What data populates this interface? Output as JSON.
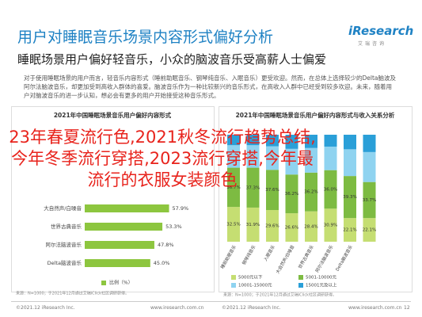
{
  "header": {
    "title": "用户对睡眠音乐场景内容形式偏好分析",
    "logo": "iResearch",
    "logo_sub": "艾瑞咨询",
    "subtitle": "睡眠场景用户偏好轻音乐，小众的脑波音乐受高薪人士偏爱",
    "body": "对于使用睡眠场景的用户而言，轻音乐内容形式（睡前助眠音乐、钢琴纯音乐、入眠音乐）更受欢迎。然而，在总体上选择较少的Delta脑波及阿尔法脑波音乐，却更加受到高收入群体的喜爱。脑波音乐作为一种比较新兴的音乐形式，在高收入人群中已经受到较多欢迎。未来，随着用户对脑波音乐的进一步认知，想必会有更多的用户开始接受这种音乐形式。"
  },
  "overlay": "23年春夏流行色,2021秋冬流行趋势总结,今年冬季流行穿搭,2023流行穿搭,今年最流行的衣服女装颜色",
  "chart_data": [
    {
      "type": "hbar",
      "title": "2021年中国睡眠场景音乐用户偏好内容形式",
      "categories": [
        "大自然声/白噪音",
        "世界古典音乐",
        "阿尔法脑波音乐",
        "Delta脑波音乐"
      ],
      "values": [
        57.9,
        53.3,
        47.8,
        45.0
      ],
      "value_labels": [
        "57.9%",
        "53.3%",
        "47.8%",
        "45.0%"
      ],
      "xlim": [
        0,
        75
      ],
      "color": "#8dc63f",
      "legend": "比例（%）",
      "source": "来源：N=1000；于2021年12月通过艾瑞iClick社区调研获得。"
    },
    {
      "type": "stacked_bar",
      "title": "2021年中国睡眠场景音乐用户偏好内容形式与收入关系分析",
      "categories": [
        "睡前助眠音乐",
        "钢琴纯音乐",
        "入眠音乐",
        "大自然声/白噪音",
        "世界古典音乐",
        "阿尔法脑波音乐",
        "Delta脑波音乐",
        null
      ],
      "ylim": [
        0,
        100
      ],
      "series": [
        {
          "name": "5000元以下",
          "color": "#c5de72",
          "values": [
            32.5,
            31.9,
            29.6,
            26.6,
            28.4,
            30.9,
            22.1,
            22.1
          ],
          "value_labels": [
            "32.5%",
            "31.9%",
            "29.6%",
            "26.6%",
            "28.4%",
            "30.9%",
            "22.1%",
            "22.1%"
          ]
        },
        {
          "name": "5001-10000元",
          "color": "#7dbb42",
          "values": [
            36.7,
            37.3,
            37.6,
            36.2,
            36.2,
            36.0,
            39.3,
            33.7
          ],
          "value_labels": [
            "36.7%",
            "37.3%",
            "37.6%",
            "36.2%",
            "36.2%",
            "36.0%",
            "39.3%",
            "33.7%"
          ]
        },
        {
          "name": "10001-15000元",
          "color": "#8fd3f0",
          "values": [
            21,
            21,
            22,
            24,
            23,
            22,
            25,
            28
          ]
        },
        {
          "name": "15001元及以上",
          "color": "#2a9fd8",
          "values": [
            9.8,
            9.8,
            10.8,
            13.2,
            12.4,
            11.1,
            13.6,
            16.2
          ]
        }
      ],
      "source": "来源：N=1000；于2021年12月通过艾瑞iClick社区调研获得。"
    }
  ],
  "footer": {
    "copyright": "©2021.12 iResearch Inc.",
    "site": "www.iresearch.com.cn",
    "page": "12"
  }
}
